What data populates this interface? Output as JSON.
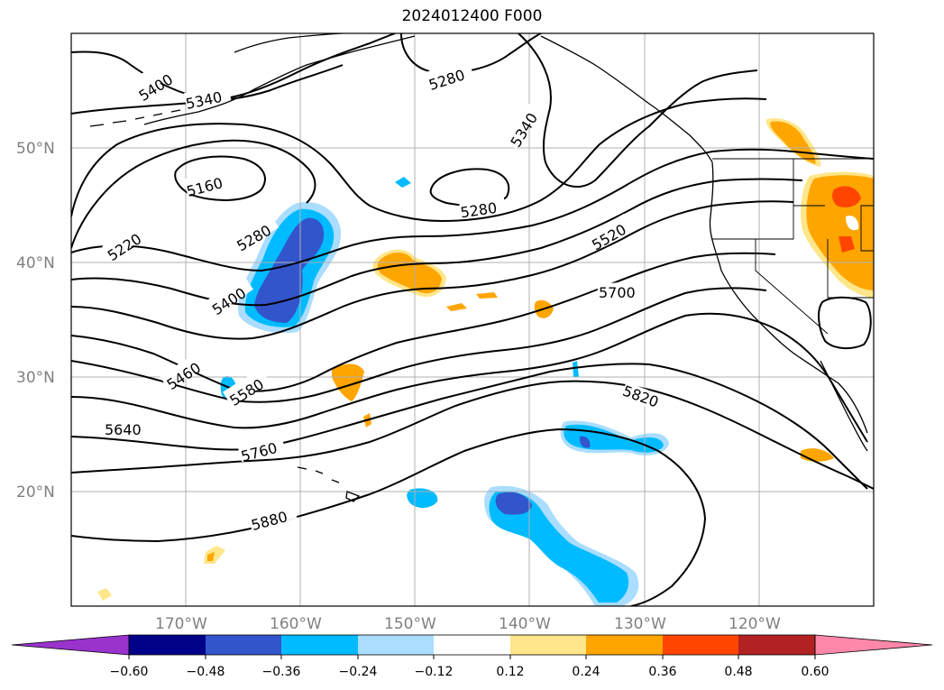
{
  "title": "2024012400 F000",
  "lat_labels": [
    "50°N",
    "40°N",
    "30°N",
    "20°N"
  ],
  "lon_labels": [
    "170°W",
    "160°W",
    "150°W",
    "140°W",
    "130°W",
    "120°W"
  ],
  "contour_labels": [
    "5400",
    "5340",
    "5280",
    "5160",
    "5220",
    "5280",
    "5280",
    "5340",
    "5400",
    "5520",
    "5460",
    "5580",
    "5700",
    "5640",
    "5760",
    "5820",
    "5880"
  ],
  "colorbar": {
    "ticks": [
      "−0.60",
      "−0.48",
      "−0.36",
      "−0.24",
      "−0.12",
      "0.12",
      "0.24",
      "0.36",
      "0.48",
      "0.60"
    ],
    "colors": [
      "#9933cc",
      "#000088",
      "#3355cc",
      "#00bbff",
      "#aaddff",
      "#ffffff",
      "#ffe68a",
      "#ffa500",
      "#ff4500",
      "#b22222",
      "#ff88aa",
      "#ff88aa"
    ]
  }
}
